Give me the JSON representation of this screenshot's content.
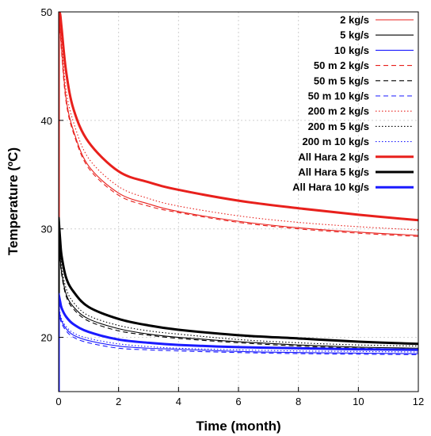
{
  "chart_data": {
    "type": "line",
    "xlabel": "Time (month)",
    "ylabel": "Temperature (ºC)",
    "xlim": [
      0,
      12
    ],
    "ylim": [
      15,
      50
    ],
    "xticks": [
      "0",
      "2",
      "4",
      "6",
      "8",
      "10",
      "12"
    ],
    "yticks": [
      "20",
      "30",
      "40",
      "50"
    ],
    "grid": true,
    "legend_position": "top-right",
    "x": [
      0,
      0.05,
      0.1,
      0.25,
      0.5,
      1,
      2,
      3,
      4,
      6,
      8,
      10,
      12
    ],
    "series": [
      {
        "name": "2 kg/s",
        "color": "#e8201c",
        "style": "solid",
        "width": "thin",
        "values": [
          50,
          48.5,
          46.5,
          42,
          39,
          35.8,
          33.3,
          32.3,
          31.6,
          30.7,
          30.1,
          29.7,
          29.4
        ]
      },
      {
        "name": "5 kg/s",
        "color": "#000000",
        "style": "solid",
        "width": "thin",
        "values": [
          30,
          27.5,
          26,
          24,
          22.8,
          21.7,
          20.8,
          20.3,
          20.0,
          19.6,
          19.3,
          19.1,
          19.0
        ]
      },
      {
        "name": "10 kg/s",
        "color": "#1a1aff",
        "style": "solid",
        "width": "thin",
        "values": [
          23,
          22,
          21.5,
          20.8,
          20.2,
          19.7,
          19.2,
          19.0,
          18.9,
          18.7,
          18.6,
          18.55,
          18.5
        ]
      },
      {
        "name": "50 m 2 kg/s",
        "color": "#e8201c",
        "style": "dashed",
        "width": "thin",
        "values": [
          50,
          48.3,
          46.2,
          41.7,
          38.8,
          35.6,
          33.1,
          32.1,
          31.5,
          30.6,
          30.0,
          29.6,
          29.3
        ]
      },
      {
        "name": "50 m 5 kg/s",
        "color": "#000000",
        "style": "dashed",
        "width": "thin",
        "values": [
          30,
          27.3,
          25.8,
          23.8,
          22.6,
          21.5,
          20.6,
          20.2,
          19.9,
          19.5,
          19.2,
          19.0,
          18.9
        ]
      },
      {
        "name": "50 m 10 kg/s",
        "color": "#1a1aff",
        "style": "dashed",
        "width": "thin",
        "values": [
          22.8,
          21.8,
          21.3,
          20.6,
          20.0,
          19.5,
          19.0,
          18.85,
          18.75,
          18.6,
          18.5,
          18.45,
          18.4
        ]
      },
      {
        "name": "200 m 2 kg/s",
        "color": "#e8201c",
        "style": "dotted",
        "width": "thin",
        "values": [
          50,
          49,
          47.2,
          42.8,
          39.8,
          36.5,
          33.9,
          32.8,
          32.1,
          31.2,
          30.6,
          30.2,
          29.9
        ]
      },
      {
        "name": "200 m 5 kg/s",
        "color": "#000000",
        "style": "dotted",
        "width": "thin",
        "values": [
          30.5,
          28,
          26.5,
          24.5,
          23.2,
          22.0,
          21.1,
          20.6,
          20.3,
          19.8,
          19.5,
          19.3,
          19.2
        ]
      },
      {
        "name": "200 m 10 kg/s",
        "color": "#1a1aff",
        "style": "dotted",
        "width": "thin",
        "values": [
          23.2,
          22.2,
          21.7,
          21.0,
          20.4,
          19.9,
          19.4,
          19.15,
          19.0,
          18.85,
          18.75,
          18.7,
          18.65
        ]
      },
      {
        "name": "All Hara 2 kg/s",
        "color": "#e8201c",
        "style": "solid",
        "width": "thick",
        "values": [
          50,
          49.8,
          48.5,
          44.5,
          41.0,
          38.0,
          35.3,
          34.3,
          33.6,
          32.6,
          31.9,
          31.3,
          30.8
        ]
      },
      {
        "name": "All Hara 5 kg/s",
        "color": "#000000",
        "style": "solid",
        "width": "thick",
        "values": [
          31,
          29,
          27.5,
          25.5,
          24.2,
          22.8,
          21.7,
          21.1,
          20.7,
          20.2,
          19.9,
          19.6,
          19.4
        ]
      },
      {
        "name": "All Hara 10 kg/s",
        "color": "#1a1aff",
        "style": "solid",
        "width": "thick",
        "values": [
          24,
          23.3,
          22.7,
          21.9,
          21.2,
          20.5,
          19.8,
          19.5,
          19.3,
          19.1,
          19.0,
          18.9,
          18.85
        ]
      }
    ]
  }
}
